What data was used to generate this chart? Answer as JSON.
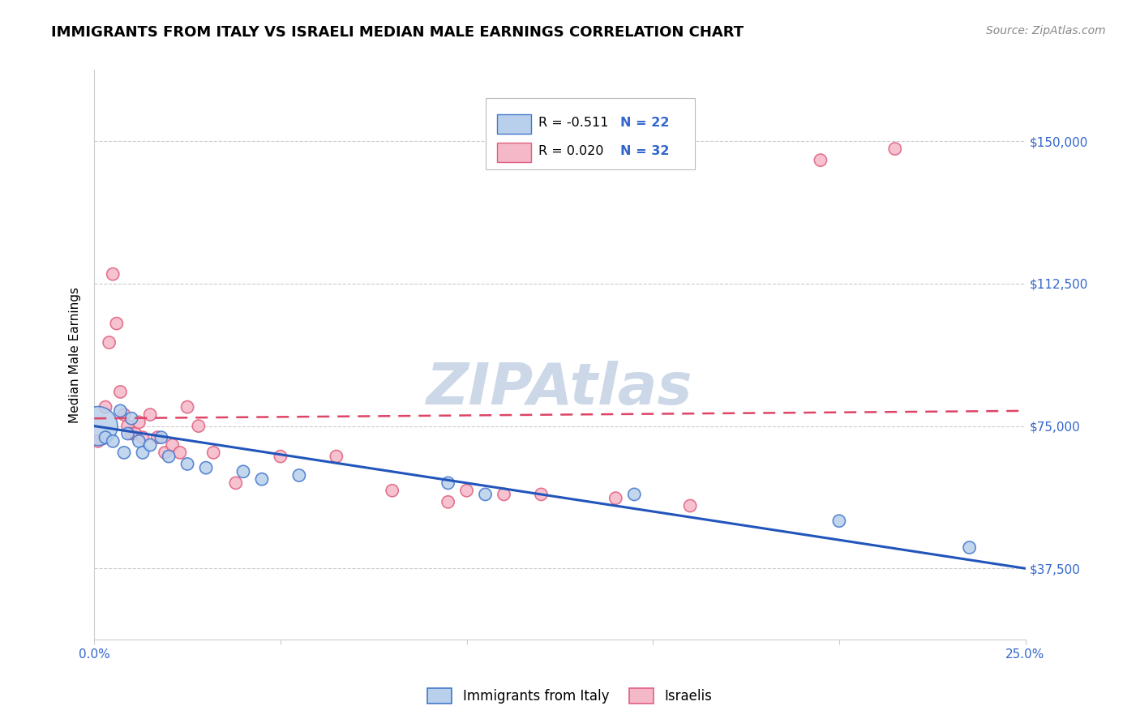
{
  "title": "IMMIGRANTS FROM ITALY VS ISRAELI MEDIAN MALE EARNINGS CORRELATION CHART",
  "source": "Source: ZipAtlas.com",
  "ylabel": "Median Male Earnings",
  "xlim": [
    0.0,
    0.25
  ],
  "ylim": [
    18750,
    168750
  ],
  "yticks": [
    37500,
    75000,
    112500,
    150000
  ],
  "ytick_labels": [
    "$37,500",
    "$75,000",
    "$112,500",
    "$150,000"
  ],
  "xticks": [
    0.0,
    0.05,
    0.1,
    0.15,
    0.2,
    0.25
  ],
  "xtick_labels": [
    "0.0%",
    "",
    "",
    "",
    "",
    "25.0%"
  ],
  "legend_r_blue": "R = -0.511",
  "legend_n_blue": "N = 22",
  "legend_r_pink": "R = 0.020",
  "legend_n_pink": "N = 32",
  "legend_label_blue": "Immigrants from Italy",
  "legend_label_pink": "Israelis",
  "blue_fill": "#b8d0ec",
  "pink_fill": "#f5b8c8",
  "blue_edge": "#4477cc",
  "pink_edge": "#e06080",
  "blue_line_color": "#2255bb",
  "pink_line_color": "#dd4466",
  "background_color": "#ffffff",
  "grid_color": "#cccccc",
  "tick_color": "#3366cc",
  "title_fontsize": 13,
  "label_fontsize": 11,
  "tick_fontsize": 11,
  "watermark_text": "ZIPAtlas",
  "watermark_color": "#ccd8e8",
  "blue_scatter_x": [
    0.001,
    0.003,
    0.005,
    0.007,
    0.008,
    0.009,
    0.01,
    0.012,
    0.013,
    0.015,
    0.018,
    0.02,
    0.025,
    0.03,
    0.04,
    0.045,
    0.055,
    0.095,
    0.105,
    0.145,
    0.2,
    0.235
  ],
  "blue_scatter_y": [
    75000,
    72000,
    71000,
    79000,
    68000,
    73000,
    77000,
    71000,
    68000,
    70000,
    72000,
    67000,
    65000,
    64000,
    63000,
    61000,
    62000,
    60000,
    57000,
    57000,
    50000,
    43000
  ],
  "blue_scatter_size": [
    1200,
    120,
    120,
    120,
    120,
    120,
    120,
    120,
    120,
    120,
    120,
    120,
    120,
    120,
    120,
    120,
    120,
    120,
    120,
    120,
    120,
    120
  ],
  "pink_scatter_x": [
    0.001,
    0.003,
    0.004,
    0.005,
    0.006,
    0.007,
    0.008,
    0.009,
    0.01,
    0.011,
    0.012,
    0.013,
    0.015,
    0.017,
    0.019,
    0.021,
    0.023,
    0.025,
    0.028,
    0.032,
    0.038,
    0.05,
    0.065,
    0.08,
    0.095,
    0.1,
    0.11,
    0.12,
    0.14,
    0.16,
    0.195,
    0.215
  ],
  "pink_scatter_y": [
    71000,
    80000,
    97000,
    115000,
    102000,
    84000,
    78000,
    75000,
    73000,
    73000,
    76000,
    72000,
    78000,
    72000,
    68000,
    70000,
    68000,
    80000,
    75000,
    68000,
    60000,
    67000,
    67000,
    58000,
    55000,
    58000,
    57000,
    57000,
    56000,
    54000,
    145000,
    148000
  ],
  "pink_scatter_size": [
    120,
    120,
    120,
    120,
    120,
    120,
    120,
    120,
    120,
    120,
    120,
    120,
    120,
    120,
    120,
    120,
    120,
    120,
    120,
    120,
    120,
    120,
    120,
    120,
    120,
    120,
    120,
    120,
    120,
    120,
    120,
    120
  ],
  "blue_trendline_y0": 75000,
  "blue_trendline_y1": 37500,
  "pink_trendline_y0": 77000,
  "pink_trendline_y1": 79000
}
